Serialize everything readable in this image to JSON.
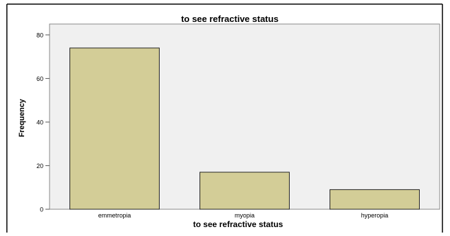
{
  "chart_data": {
    "type": "bar",
    "title": "to see refractive status",
    "xlabel": "to see refractive status",
    "ylabel": "Frequency",
    "categories": [
      "emmetropia",
      "myopia",
      "hyperopia"
    ],
    "values": [
      74,
      17,
      9
    ],
    "ylim": [
      0,
      85
    ],
    "yticks": [
      0,
      20,
      40,
      60,
      80
    ],
    "grid": false,
    "legend": "none",
    "colors": {
      "bar_fill": "#d3cd97",
      "bar_stroke": "#222222",
      "plot_background": "#f0f0f0",
      "axis": "#555555",
      "text": "#000000"
    }
  }
}
